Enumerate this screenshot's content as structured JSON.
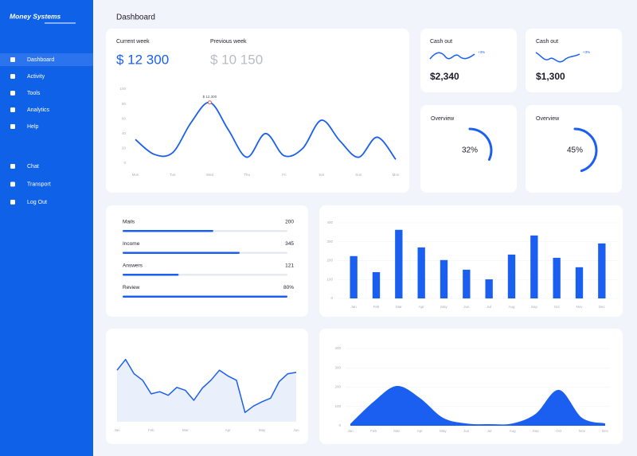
{
  "sidebar": {
    "brand": "Money Systems",
    "active": 0,
    "menu": [
      "Dashboard",
      "Activity",
      "Tools",
      "Analytics",
      "Help"
    ],
    "menu_bottom": [
      "Chat",
      "Transport",
      "Log Out"
    ]
  },
  "header": {
    "title": "Dashboard"
  },
  "week": {
    "current": {
      "label": "Current week",
      "value": "$ 12 300"
    },
    "previous": {
      "label": "Previous week",
      "value": "$ 10 150"
    },
    "chart_data": {
      "type": "line",
      "annotation": "$ 12,300",
      "color": "#1a5ff0",
      "grid": false,
      "categories": [
        "Mon",
        null,
        "Tue",
        null,
        "Wed",
        null,
        "Thu",
        null,
        "Fri",
        null,
        "Sat",
        null,
        "Sun",
        null,
        "Mon"
      ],
      "values": [
        32,
        12,
        14,
        55,
        82,
        45,
        8,
        40,
        10,
        20,
        58,
        30,
        8,
        35,
        5
      ],
      "ylim": [
        0,
        100
      ],
      "yticks": [
        0,
        20,
        40,
        60,
        80,
        100
      ]
    }
  },
  "cash_out": [
    {
      "title": "Cash out",
      "change": "+3%",
      "value": "$2,340"
    },
    {
      "title": "Cash out",
      "change": "+3%",
      "value": "$1,300"
    }
  ],
  "overview": [
    {
      "title": "Overview",
      "value": 32,
      "value_label": "32%"
    },
    {
      "title": "Overview",
      "value": 45,
      "value_label": "45%"
    }
  ],
  "stats": {
    "xlim": [
      0,
      100
    ],
    "rows": [
      {
        "label": "Mails",
        "value": "200",
        "progress": 55
      },
      {
        "label": "Income",
        "value": "345",
        "progress": 71
      },
      {
        "label": "Answers",
        "value": "121",
        "progress": 34
      },
      {
        "label": "Review",
        "value": "80%",
        "progress": 100
      }
    ]
  },
  "bars": {
    "chart_data": {
      "type": "bar",
      "color": "#1a5ff0",
      "grid": true,
      "categories": [
        "Jan",
        "Feb",
        "Mar",
        "Apr",
        "May",
        "Jun",
        "Jul",
        "Aug",
        "Sep",
        "Oct",
        "Nov",
        "Dec"
      ],
      "values": [
        224,
        139,
        363,
        270,
        203,
        152,
        101,
        232,
        333,
        215,
        165,
        291
      ],
      "ylim": [
        0,
        400
      ],
      "yticks": [
        0,
        100,
        200,
        300,
        400
      ]
    }
  },
  "trend": {
    "chart_data": {
      "type": "line",
      "color": "#1a5ff0",
      "fill_color": "#e9f0fc",
      "grid": false,
      "categories": [
        "Jan",
        null,
        null,
        null,
        "Feb",
        null,
        null,
        null,
        "Mar",
        null,
        null,
        null,
        null,
        "Apr",
        null,
        null,
        null,
        "May",
        null,
        null,
        null,
        "Jun"
      ],
      "values": [
        72,
        87,
        67,
        58,
        39,
        42,
        37,
        48,
        44,
        30,
        47,
        58,
        72,
        64,
        58,
        13,
        22,
        28,
        33,
        56,
        67,
        69
      ],
      "ylim": [
        0,
        100
      ]
    }
  },
  "area": {
    "chart_data": {
      "type": "area",
      "color": "#1a5ff0",
      "grid": true,
      "categories": [
        "Jan",
        "Feb",
        "Mar",
        "Apr",
        "May",
        "Jun",
        "Jul",
        "Aug",
        "Sep",
        "Oct",
        "Nov",
        "Dec"
      ],
      "values": [
        10,
        124,
        206,
        144,
        41,
        12,
        8,
        12,
        62,
        186,
        41,
        12
      ],
      "ylim": [
        0,
        400
      ],
      "yticks": [
        0,
        100,
        200,
        300,
        400
      ]
    }
  }
}
